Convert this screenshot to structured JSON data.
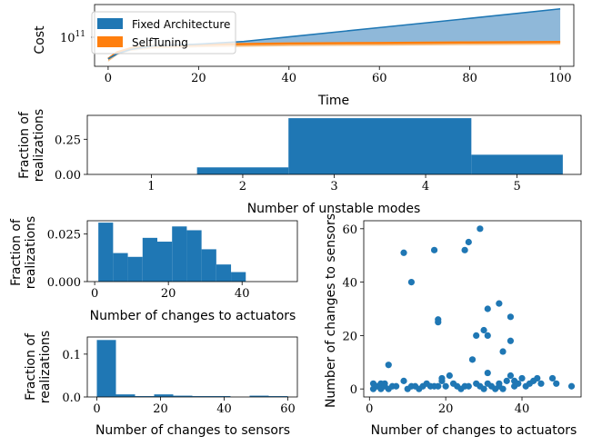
{
  "colors": {
    "blue": "#1f77b4",
    "orange": "#ff7f0e",
    "blue_fill": "#8fb8d9",
    "orange_fill": "#f2c48f"
  },
  "chart_data": [
    {
      "id": "cost",
      "type": "area",
      "xlabel": "Time",
      "ylabel": "Cost",
      "xlim": [
        -3,
        103
      ],
      "xticks": [
        0,
        20,
        40,
        60,
        80,
        100
      ],
      "ytick_label": "10^11",
      "ytick_label_base": "10",
      "ytick_label_exp": "11",
      "legend": "top-left",
      "x": [
        0,
        2,
        5,
        10,
        20,
        30,
        40,
        60,
        80,
        100
      ],
      "series": [
        {
          "name": "Fixed Architecture",
          "values": [
            30000000000.0,
            36000000000.0,
            42000000000.0,
            48000000000.0,
            51000000000.0,
            56000000000.0,
            66000000000.0,
            92000000000.0,
            128000000000.0,
            180000000000.0
          ]
        },
        {
          "name": "SelfTuning",
          "values": [
            30000000000.0,
            38000000000.0,
            44000000000.0,
            48000000000.0,
            50000000000.0,
            51000000000.0,
            52000000000.0,
            53000000000.0,
            54000000000.0,
            55000000000.0
          ]
        }
      ]
    },
    {
      "id": "unstable",
      "type": "bar",
      "xlabel": "Number of unstable modes",
      "ylabel": "Fraction of realizations",
      "ylabel_lines": [
        "Fraction of",
        "realizations"
      ],
      "xlim": [
        0.3,
        5.7
      ],
      "ylim": [
        0,
        0.42
      ],
      "xticks": [
        1,
        2,
        3,
        4,
        5
      ],
      "yticks": [
        "0.00",
        "0.25"
      ],
      "bins": [
        [
          1.5,
          2.5,
          0.05
        ],
        [
          2.5,
          4.5,
          0.4
        ],
        [
          4.5,
          5.5,
          0.14
        ]
      ]
    },
    {
      "id": "actuators_hist",
      "type": "bar",
      "xlabel": "Number of changes to actuators",
      "ylabel": "Fraction of realizations",
      "ylabel_lines": [
        "Fraction of",
        "realizations"
      ],
      "xlim": [
        -2,
        55
      ],
      "ylim": [
        0,
        0.032
      ],
      "xticks": [
        0,
        20,
        40
      ],
      "yticks": [
        "0.000",
        "0.025"
      ],
      "bin_start": 1,
      "bin_width": 4,
      "values": [
        0.031,
        0.015,
        0.013,
        0.023,
        0.021,
        0.029,
        0.027,
        0.017,
        0.009,
        0.005
      ]
    },
    {
      "id": "sensors_hist",
      "type": "bar",
      "xlabel": "Number of changes to sensors",
      "ylabel": "Fraction of realizations",
      "ylabel_lines": [
        "Fraction of",
        "realizations"
      ],
      "xlim": [
        -3,
        63
      ],
      "ylim": [
        0,
        0.14
      ],
      "xticks": [
        0,
        20,
        40,
        60
      ],
      "yticks": [
        "0.0",
        "0.1"
      ],
      "bin_start": 0,
      "bin_width": 6,
      "values": [
        0.133,
        0.006,
        0.002,
        0.006,
        0.003,
        0.002,
        0.002,
        0.0,
        0.003,
        0.002
      ]
    },
    {
      "id": "scatter",
      "type": "scatter",
      "xlabel": "Number of changes to actuators",
      "ylabel": "Number of changes to sensors",
      "xlim": [
        -1.5,
        55.5
      ],
      "ylim": [
        -3,
        63
      ],
      "xticks": [
        0,
        20,
        40
      ],
      "yticks": [
        0,
        20,
        40,
        60
      ],
      "points": [
        [
          1,
          2
        ],
        [
          1,
          0
        ],
        [
          2,
          1
        ],
        [
          3,
          2
        ],
        [
          3,
          0
        ],
        [
          4,
          2
        ],
        [
          4,
          1
        ],
        [
          5,
          0
        ],
        [
          5,
          9
        ],
        [
          6,
          1
        ],
        [
          7,
          1
        ],
        [
          9,
          51
        ],
        [
          9,
          3
        ],
        [
          10,
          0
        ],
        [
          11,
          40
        ],
        [
          11,
          1
        ],
        [
          12,
          1
        ],
        [
          13,
          0
        ],
        [
          14,
          1
        ],
        [
          15,
          2
        ],
        [
          16,
          1
        ],
        [
          17,
          52
        ],
        [
          17,
          1
        ],
        [
          18,
          26
        ],
        [
          18,
          25
        ],
        [
          18,
          1
        ],
        [
          19,
          3
        ],
        [
          19,
          4
        ],
        [
          20,
          1
        ],
        [
          21,
          5
        ],
        [
          22,
          2
        ],
        [
          23,
          1
        ],
        [
          24,
          0
        ],
        [
          25,
          52
        ],
        [
          25,
          1
        ],
        [
          26,
          55
        ],
        [
          26,
          1
        ],
        [
          27,
          11
        ],
        [
          28,
          20
        ],
        [
          28,
          2
        ],
        [
          29,
          60
        ],
        [
          29,
          1
        ],
        [
          30,
          22
        ],
        [
          30,
          0
        ],
        [
          31,
          30
        ],
        [
          31,
          20
        ],
        [
          31,
          6
        ],
        [
          31,
          2
        ],
        [
          32,
          1
        ],
        [
          33,
          0
        ],
        [
          34,
          32
        ],
        [
          34,
          2
        ],
        [
          34,
          1
        ],
        [
          35,
          14
        ],
        [
          35,
          0
        ],
        [
          36,
          3
        ],
        [
          37,
          27
        ],
        [
          37,
          18
        ],
        [
          37,
          5
        ],
        [
          38,
          3
        ],
        [
          38,
          1
        ],
        [
          39,
          2
        ],
        [
          40,
          4
        ],
        [
          41,
          1
        ],
        [
          42,
          2
        ],
        [
          43,
          3
        ],
        [
          44,
          4
        ],
        [
          45,
          2
        ],
        [
          48,
          4
        ],
        [
          49,
          2
        ],
        [
          53,
          1
        ]
      ]
    }
  ]
}
